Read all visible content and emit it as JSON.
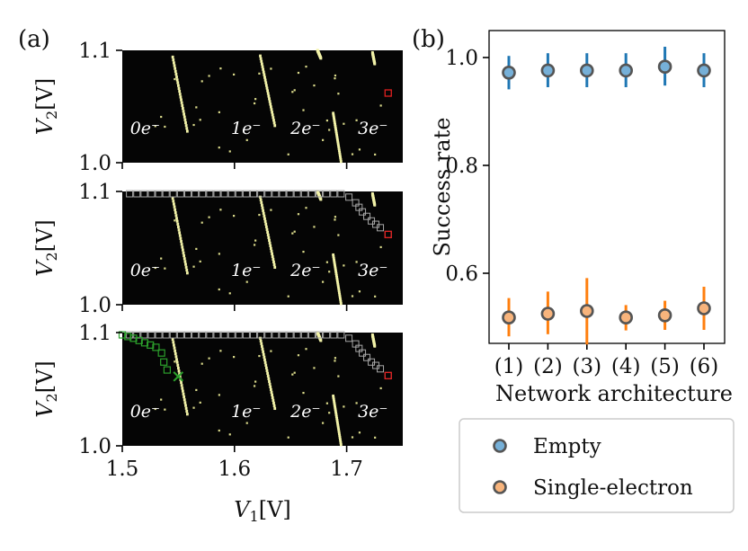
{
  "chart_data": [
    {
      "type": "heatmap",
      "panel_label": "(a)",
      "subplots": 3,
      "xlabel": "V_1[V]",
      "ylabel": "V_2[V]",
      "xlim": [
        1.5,
        1.75
      ],
      "ylim": [
        1.0,
        1.1
      ],
      "xticks": [
        "1.5",
        "1.6",
        "1.7"
      ],
      "xtick_values": [
        1.5,
        1.6,
        1.7
      ],
      "yticks": [
        "1.0",
        "1.1"
      ],
      "ytick_values": [
        1.0,
        1.1
      ],
      "charge_labels": [
        {
          "text": "0e⁻",
          "V1": 1.515,
          "V2": 1.024
        },
        {
          "text": "1e⁻",
          "V1": 1.605,
          "V2": 1.024
        },
        {
          "text": "2e⁻",
          "V1": 1.658,
          "V2": 1.024
        },
        {
          "text": "3e⁻",
          "V1": 1.718,
          "V2": 1.024
        }
      ],
      "transition_lines": [
        [
          [
            1.545,
            1.094
          ],
          [
            1.558,
            1.028
          ]
        ],
        [
          [
            1.623,
            1.095
          ],
          [
            1.636,
            1.033
          ]
        ],
        [
          [
            1.674,
            1.1
          ],
          [
            1.677,
            1.093
          ]
        ],
        [
          [
            1.688,
            1.044
          ],
          [
            1.695,
            1.001
          ]
        ],
        [
          [
            1.723,
            1.098
          ],
          [
            1.725,
            1.088
          ]
        ]
      ],
      "start_point": {
        "V1": 1.737,
        "V2": 1.062
      },
      "gray_path": [
        [
          1.737,
          1.062
        ],
        [
          1.73,
          1.068
        ],
        [
          1.722,
          1.074
        ],
        [
          1.714,
          1.082
        ],
        [
          1.708,
          1.09
        ],
        [
          1.702,
          1.095
        ],
        [
          1.695,
          1.098
        ],
        [
          1.5,
          1.098
        ]
      ],
      "green_path": [
        [
          1.5,
          1.098
        ],
        [
          1.51,
          1.095
        ],
        [
          1.52,
          1.091
        ],
        [
          1.53,
          1.087
        ],
        [
          1.535,
          1.082
        ],
        [
          1.537,
          1.074
        ],
        [
          1.54,
          1.067
        ],
        [
          1.545,
          1.062
        ]
      ],
      "end_marker": {
        "V1": 1.548,
        "V2": 1.062,
        "symbol": "×"
      }
    },
    {
      "type": "scatter",
      "panel_label": "(b)",
      "xlabel": "Network architecture",
      "ylabel": "Success rate",
      "categories": [
        "(1)",
        "(2)",
        "(3)",
        "(4)",
        "(5)",
        "(6)"
      ],
      "ylim": [
        0.47,
        1.05
      ],
      "yticks": [
        "0.6",
        "0.8",
        "1.0"
      ],
      "ytick_values": [
        0.6,
        0.8,
        1.0
      ],
      "legend_position": "bottom",
      "series": [
        {
          "name": "Empty",
          "color": "#1f77b4",
          "fill": "#76b0d8",
          "values": [
            0.972,
            0.976,
            0.976,
            0.976,
            0.983,
            0.976
          ],
          "err_low": [
            0.941,
            0.945,
            0.945,
            0.945,
            0.948,
            0.945
          ],
          "err_high": [
            1.003,
            1.008,
            1.008,
            1.008,
            1.02,
            1.008
          ]
        },
        {
          "name": "Single-electron",
          "color": "#ff7f0e",
          "fill": "#f8b47c",
          "values": [
            0.518,
            0.525,
            0.53,
            0.518,
            0.522,
            0.535
          ],
          "err_low": [
            0.483,
            0.487,
            0.468,
            0.494,
            0.495,
            0.495
          ],
          "err_high": [
            0.554,
            0.566,
            0.591,
            0.541,
            0.549,
            0.575
          ]
        }
      ]
    }
  ]
}
